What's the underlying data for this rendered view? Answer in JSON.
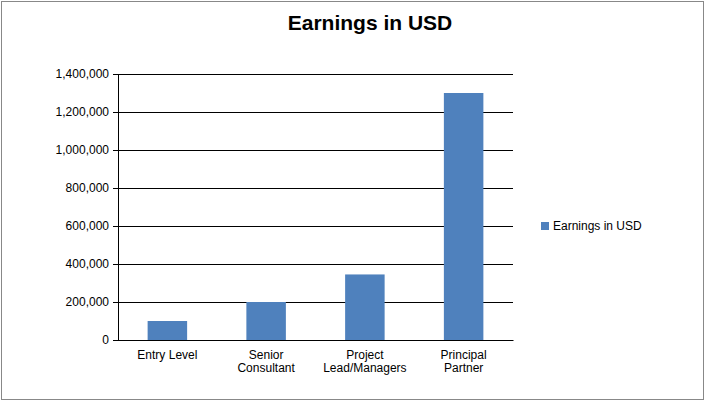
{
  "chart_data": {
    "type": "bar",
    "title": "Earnings in USD",
    "categories": [
      "Entry Level",
      "Senior Consultant",
      "Project Lead/Managers",
      "Principal Partner"
    ],
    "series": [
      {
        "name": "Earnings in USD",
        "color": "#4f81bd",
        "values": [
          100000,
          200000,
          345000,
          1300000
        ]
      }
    ],
    "ylim": [
      0,
      1400000
    ],
    "yticks": [
      0,
      {
        "value": 200000,
        "label": "200,000"
      },
      {
        "value": 400000,
        "label": "400,000"
      },
      {
        "value": 600000,
        "label": "600,000"
      },
      {
        "value": 800000,
        "label": "800,000"
      },
      {
        "value": 1000000,
        "label": "1,000,000"
      },
      {
        "value": 1200000,
        "label": "1,200,000"
      },
      {
        "value": 1400000,
        "label": "1,400,000"
      }
    ],
    "grid": true,
    "legend": "right"
  }
}
